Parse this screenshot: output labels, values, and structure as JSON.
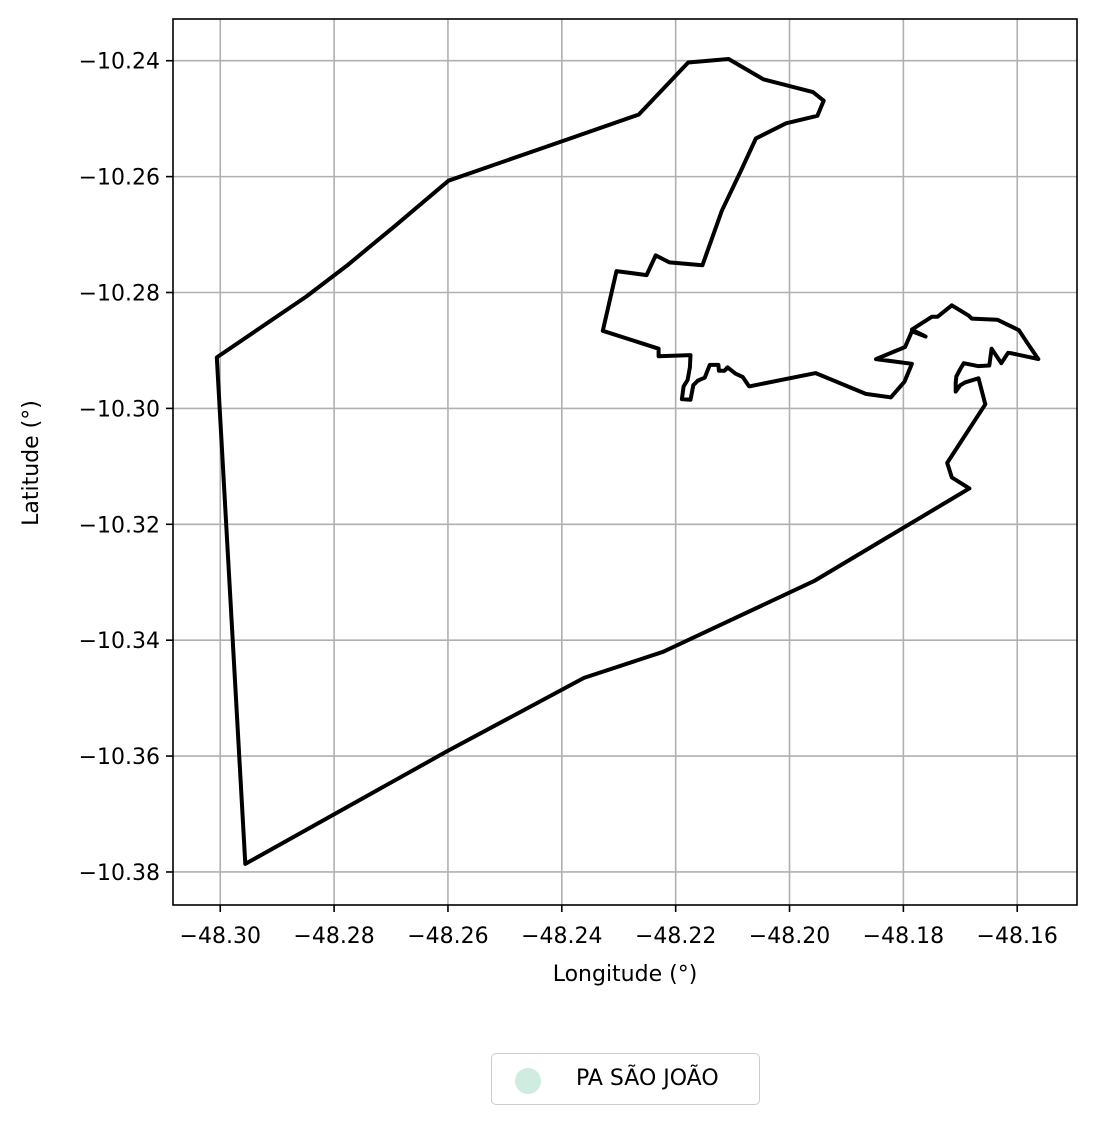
{
  "chart_data": {
    "type": "map-outline",
    "xlabel": "Longitude (°)",
    "ylabel": "Latitude (°)",
    "xlim": [
      -48.3083,
      -48.1495
    ],
    "ylim": [
      -10.3857,
      -10.2328
    ],
    "xticks": [
      -48.3,
      -48.28,
      -48.26,
      -48.24,
      -48.22,
      -48.2,
      -48.18,
      -48.16
    ],
    "xtick_labels": [
      "−48.30",
      "−48.28",
      "−48.26",
      "−48.24",
      "−48.22",
      "−48.20",
      "−48.18",
      "−48.16"
    ],
    "yticks": [
      -10.24,
      -10.26,
      -10.28,
      -10.3,
      -10.32,
      -10.34,
      -10.36,
      -10.38
    ],
    "ytick_labels": [
      "−10.24",
      "−10.26",
      "−10.28",
      "−10.30",
      "−10.32",
      "−10.34",
      "−10.36",
      "−10.38"
    ],
    "grid": true,
    "legend_position": "bottom-center",
    "legend": [
      {
        "label": "PA SÃO JOÃO",
        "color": "#d0ebe0"
      }
    ],
    "boundary": {
      "name": "PA SÃO JOÃO",
      "edge_color": "#000000",
      "coordinates": [
        [
          -48.2956,
          -10.3786
        ],
        [
          -48.3006,
          -10.2912
        ],
        [
          -48.2849,
          -10.2807
        ],
        [
          -48.2778,
          -10.2754
        ],
        [
          -48.2693,
          -10.2685
        ],
        [
          -48.2599,
          -10.2607
        ],
        [
          -48.2426,
          -10.2548
        ],
        [
          -48.2265,
          -10.2493
        ],
        [
          -48.2178,
          -10.2403
        ],
        [
          -48.2107,
          -10.2397
        ],
        [
          -48.2046,
          -10.2432
        ],
        [
          -48.1959,
          -10.2454
        ],
        [
          -48.194,
          -10.2469
        ],
        [
          -48.1951,
          -10.2495
        ],
        [
          -48.2006,
          -10.2508
        ],
        [
          -48.2059,
          -10.2534
        ],
        [
          -48.2084,
          -10.2587
        ],
        [
          -48.2119,
          -10.2659
        ],
        [
          -48.2153,
          -10.2753
        ],
        [
          -48.2211,
          -10.2748
        ],
        [
          -48.2235,
          -10.2736
        ],
        [
          -48.2251,
          -10.277
        ],
        [
          -48.2304,
          -10.2763
        ],
        [
          -48.2328,
          -10.2866
        ],
        [
          -48.223,
          -10.2897
        ],
        [
          -48.223,
          -10.291
        ],
        [
          -48.2174,
          -10.2908
        ],
        [
          -48.2175,
          -10.2929
        ],
        [
          -48.2179,
          -10.2951
        ],
        [
          -48.2186,
          -10.2962
        ],
        [
          -48.2189,
          -10.2984
        ],
        [
          -48.2174,
          -10.2985
        ],
        [
          -48.2169,
          -10.296
        ],
        [
          -48.2161,
          -10.2952
        ],
        [
          -48.2149,
          -10.2947
        ],
        [
          -48.214,
          -10.2925
        ],
        [
          -48.2125,
          -10.2925
        ],
        [
          -48.2124,
          -10.2935
        ],
        [
          -48.2114,
          -10.2935
        ],
        [
          -48.2109,
          -10.2929
        ],
        [
          -48.2095,
          -10.294
        ],
        [
          -48.2082,
          -10.2946
        ],
        [
          -48.2071,
          -10.2962
        ],
        [
          -48.1954,
          -10.2939
        ],
        [
          -48.1866,
          -10.2975
        ],
        [
          -48.1822,
          -10.2981
        ],
        [
          -48.1798,
          -10.2954
        ],
        [
          -48.1785,
          -10.2923
        ],
        [
          -48.1848,
          -10.2915
        ],
        [
          -48.1797,
          -10.2894
        ],
        [
          -48.1785,
          -10.2867
        ],
        [
          -48.1761,
          -10.2876
        ],
        [
          -48.1785,
          -10.2864
        ],
        [
          -48.175,
          -10.2842
        ],
        [
          -48.174,
          -10.2842
        ],
        [
          -48.1715,
          -10.2822
        ],
        [
          -48.1685,
          -10.284
        ],
        [
          -48.168,
          -10.2845
        ],
        [
          -48.1635,
          -10.2847
        ],
        [
          -48.1597,
          -10.2865
        ],
        [
          -48.1583,
          -10.2886
        ],
        [
          -48.1563,
          -10.2915
        ],
        [
          -48.1609,
          -10.2905
        ],
        [
          -48.1616,
          -10.2904
        ],
        [
          -48.1628,
          -10.2922
        ],
        [
          -48.1645,
          -10.2897
        ],
        [
          -48.1649,
          -10.2926
        ],
        [
          -48.1669,
          -10.2927
        ],
        [
          -48.1694,
          -10.2922
        ],
        [
          -48.17,
          -10.2932
        ],
        [
          -48.1707,
          -10.2945
        ],
        [
          -48.1708,
          -10.2956
        ],
        [
          -48.1708,
          -10.2971
        ],
        [
          -48.17,
          -10.296
        ],
        [
          -48.1691,
          -10.2955
        ],
        [
          -48.1668,
          -10.2948
        ],
        [
          -48.1656,
          -10.2993
        ],
        [
          -48.1723,
          -10.3094
        ],
        [
          -48.1715,
          -10.3119
        ],
        [
          -48.1684,
          -10.3138
        ],
        [
          -48.1957,
          -10.3298
        ],
        [
          -48.2222,
          -10.342
        ],
        [
          -48.2361,
          -10.3465
        ],
        [
          -48.2602,
          -10.3592
        ],
        [
          -48.2956,
          -10.3786
        ]
      ]
    }
  }
}
